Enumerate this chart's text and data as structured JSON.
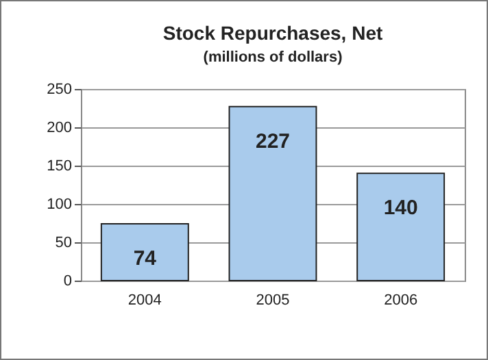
{
  "chart_data": {
    "type": "bar",
    "title": "Stock Repurchases, Net",
    "subtitle": "(millions of dollars)",
    "categories": [
      "2004",
      "2005",
      "2006"
    ],
    "values": [
      74,
      227,
      140
    ],
    "color": "#a9cbec",
    "ylim": [
      0,
      250
    ],
    "yticks": [
      0,
      50,
      100,
      150,
      200,
      250
    ],
    "grid": "y",
    "data_labels": true
  }
}
